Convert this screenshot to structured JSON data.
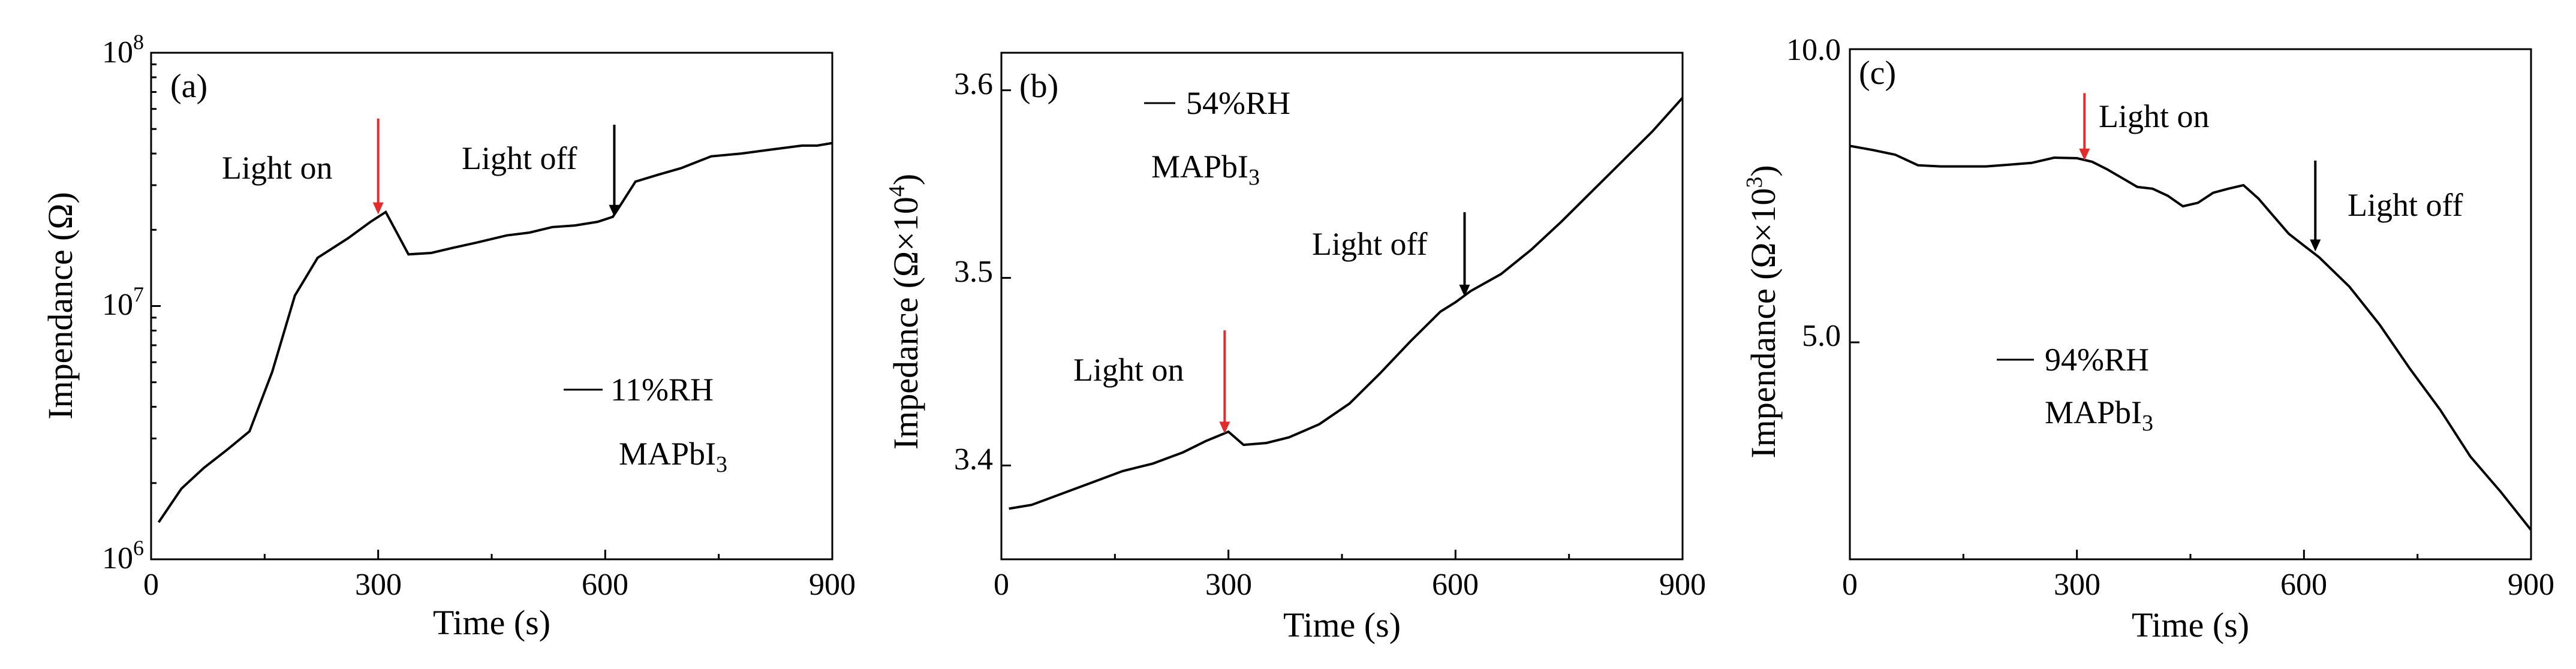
{
  "colors": {
    "line": "#000000",
    "arrow_light_on": "#e32b2b",
    "arrow_light_off": "#000000",
    "axes": "#000000"
  },
  "chart_data": [
    {
      "type": "line",
      "panel_label": "(a)",
      "xlabel": "Time (s)",
      "ylabel": "Impendance (Ω)",
      "xlim": [
        0,
        900
      ],
      "ylim": [
        1000000,
        100000000
      ],
      "yscale": "log",
      "xticks": [
        0,
        300,
        600,
        900
      ],
      "xtick_labels": [
        "0",
        "300",
        "600",
        "900"
      ],
      "yticks": [
        1000000,
        10000000,
        100000000
      ],
      "ytick_base": "10",
      "ytick_exponents": [
        "6",
        "7",
        "8"
      ],
      "series": [
        {
          "name": "11%RH",
          "x": [
            10,
            40,
            70,
            100,
            130,
            160,
            190,
            220,
            260,
            290,
            310,
            340,
            370,
            400,
            430,
            470,
            500,
            530,
            560,
            590,
            610,
            620,
            640,
            670,
            700,
            740,
            780,
            820,
            860,
            880,
            900
          ],
          "y": [
            1400000,
            1900000,
            2300000,
            2700000,
            3200000,
            5500000,
            11000000,
            15500000,
            18500000,
            21500000,
            23500000,
            16000000,
            16200000,
            17000000,
            17800000,
            19000000,
            19500000,
            20500000,
            20800000,
            21500000,
            22500000,
            25000000,
            31000000,
            33000000,
            35000000,
            39000000,
            40000000,
            41500000,
            43000000,
            43000000,
            44000000
          ]
        }
      ],
      "legend": {
        "entry": "11%RH",
        "material": "MAPbI",
        "material_sub": "3"
      },
      "annotations": [
        {
          "text": "Light on",
          "x": 300,
          "tip_y": 23000000,
          "tail_y": 55000000,
          "arrow": "light_on"
        },
        {
          "text": "Light off",
          "x": 612,
          "tip_y": 22500000,
          "tail_y": 52000000,
          "arrow": "light_off"
        }
      ]
    },
    {
      "type": "line",
      "panel_label": "(b)",
      "xlabel": "Time (s)",
      "ylabel": "Impedance (Ω×10",
      "ylabel_exp": "4",
      "ylabel_close": ")",
      "xlim": [
        0,
        900
      ],
      "ylim": [
        3.35,
        3.62
      ],
      "yscale": "linear",
      "xticks": [
        0,
        300,
        600,
        900
      ],
      "xtick_labels": [
        "0",
        "300",
        "600",
        "900"
      ],
      "yticks": [
        3.4,
        3.5,
        3.6
      ],
      "ytick_labels": [
        "3.4",
        "3.5",
        "3.6"
      ],
      "series": [
        {
          "name": "54%RH",
          "x": [
            10,
            40,
            80,
            120,
            160,
            200,
            240,
            270,
            300,
            320,
            350,
            380,
            420,
            460,
            500,
            540,
            580,
            600,
            620,
            660,
            700,
            740,
            780,
            820,
            860,
            900
          ],
          "y": [
            3.377,
            3.379,
            3.385,
            3.391,
            3.397,
            3.401,
            3.407,
            3.413,
            3.418,
            3.411,
            3.412,
            3.415,
            3.422,
            3.433,
            3.449,
            3.466,
            3.482,
            3.487,
            3.493,
            3.502,
            3.515,
            3.53,
            3.546,
            3.562,
            3.578,
            3.596
          ]
        }
      ],
      "legend": {
        "entry": "54%RH",
        "material": "MAPbI",
        "material_sub": "3"
      },
      "annotations": [
        {
          "text": "Light on",
          "x": 295,
          "tip_y": 3.417,
          "tail_y": 3.472,
          "arrow": "light_on"
        },
        {
          "text": "Light off",
          "x": 612,
          "tip_y": 3.49,
          "tail_y": 3.535,
          "arrow": "light_off"
        }
      ]
    },
    {
      "type": "line",
      "panel_label": "(c)",
      "xlabel": "Time (s)",
      "ylabel": "Impendance (Ω×10",
      "ylabel_exp": "3",
      "ylabel_close": ")",
      "xlim": [
        0,
        900
      ],
      "ylim": [
        1.3,
        10.0
      ],
      "yscale": "linear",
      "xticks": [
        0,
        300,
        600,
        900
      ],
      "xtick_labels": [
        "0",
        "300",
        "600",
        "900"
      ],
      "yticks": [
        5.0,
        10.0
      ],
      "ytick_labels": [
        "5.0",
        "10.0"
      ],
      "series": [
        {
          "name": "94%RH",
          "x": [
            0,
            30,
            60,
            90,
            120,
            150,
            180,
            210,
            240,
            270,
            300,
            320,
            340,
            360,
            380,
            400,
            420,
            440,
            460,
            480,
            500,
            520,
            540,
            560,
            580,
            600,
            620,
            660,
            700,
            740,
            780,
            820,
            860,
            900
          ],
          "y": [
            8.35,
            8.28,
            8.2,
            8.02,
            8.0,
            8.0,
            8.0,
            8.03,
            8.06,
            8.15,
            8.14,
            8.08,
            7.95,
            7.8,
            7.65,
            7.62,
            7.5,
            7.32,
            7.38,
            7.55,
            7.62,
            7.68,
            7.45,
            7.15,
            6.85,
            6.65,
            6.45,
            5.95,
            5.3,
            4.55,
            3.85,
            3.05,
            2.45,
            1.8
          ]
        }
      ],
      "legend": {
        "entry": "94%RH",
        "material": "MAPbI",
        "material_sub": "3"
      },
      "annotations": [
        {
          "text": "Light on",
          "x": 310,
          "tip_y": 8.1,
          "tail_y": 9.25,
          "arrow": "light_on"
        },
        {
          "text": "Light off",
          "x": 615,
          "tip_y": 6.55,
          "tail_y": 8.1,
          "arrow": "light_off"
        }
      ]
    }
  ]
}
